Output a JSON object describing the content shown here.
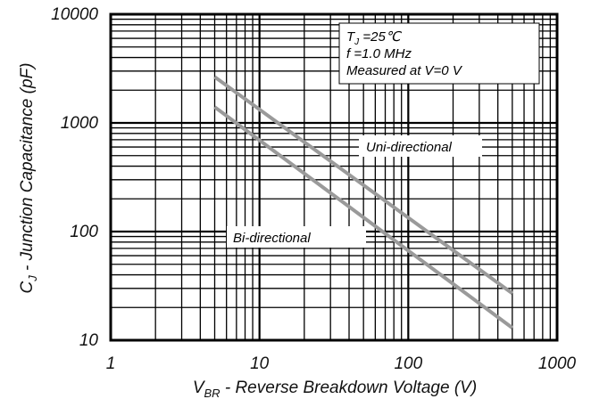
{
  "chart_data": {
    "type": "line",
    "x_scale": "log",
    "y_scale": "log",
    "xlim": [
      1,
      1000
    ],
    "ylim": [
      10,
      10000
    ],
    "x_ticks": [
      "1",
      "10",
      "100",
      "1000"
    ],
    "y_ticks": [
      "10",
      "100",
      "1000",
      "10000"
    ],
    "xlabel": {
      "base": "V",
      "sub": "BR",
      "rest": " - Reverse Breakdown Voltage (V)"
    },
    "ylabel": {
      "base": "C",
      "sub": "J",
      "rest": " - Junction Capacitance (pF)"
    },
    "grid": true,
    "conditions": {
      "line1_base": "T",
      "line1_sub": "J",
      "line1_rest": " =25℃",
      "line2": "f =1.0 MHz",
      "line3": "Measured at V=0 V"
    },
    "series": [
      {
        "name": "Uni-directional",
        "x": [
          5,
          500
        ],
        "y": [
          2650,
          27
        ],
        "color": "#9a9a9a"
      },
      {
        "name": "Bi-directional",
        "x": [
          5,
          500
        ],
        "y": [
          1400,
          13
        ],
        "color": "#9a9a9a"
      }
    ]
  }
}
